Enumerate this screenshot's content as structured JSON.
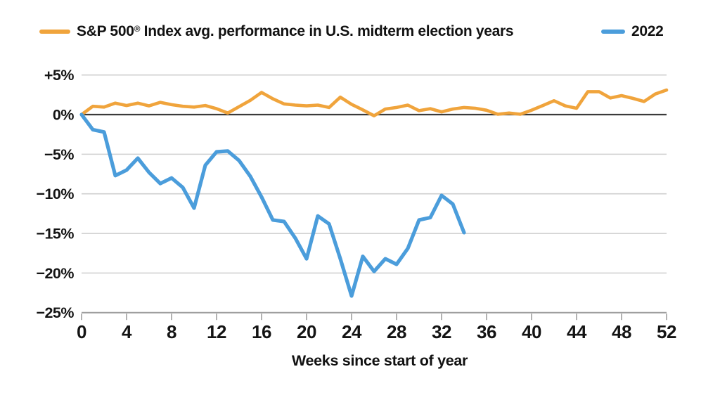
{
  "page": {
    "background": "#ffffff"
  },
  "chart_data": {
    "type": "line",
    "title": "",
    "xlabel": "Weeks since start of year",
    "ylabel": "",
    "xlim": [
      0,
      52
    ],
    "ylim": [
      -25,
      5
    ],
    "grid": true,
    "legend_position": "top",
    "x_ticks": [
      0,
      4,
      8,
      12,
      16,
      20,
      24,
      28,
      32,
      36,
      40,
      44,
      48,
      52
    ],
    "y_ticks": [
      {
        "value": 5,
        "label": "+5%"
      },
      {
        "value": 0,
        "label": "0%"
      },
      {
        "value": -5,
        "label": "−5%"
      },
      {
        "value": -10,
        "label": "−10%"
      },
      {
        "value": -15,
        "label": "−15%"
      },
      {
        "value": -20,
        "label": "−20%"
      },
      {
        "value": -25,
        "label": "−25%"
      }
    ],
    "axis_colors": {
      "grid": "#cfcfcf",
      "zero_line": "#3a3a3a",
      "axis_line": "#9e9e9e",
      "tick": "#9e9e9e",
      "text": "#141414"
    },
    "series": [
      {
        "name": "S&P 500® Index avg. performance in U.S. midterm election years",
        "label_parts": {
          "pre": "S&P 500",
          "reg": "®",
          "post": " Index avg. performance in U.S. midterm election years"
        },
        "color": "#F0A43C",
        "line_width": 4.6,
        "x": [
          0,
          1,
          2,
          3,
          4,
          5,
          6,
          7,
          8,
          9,
          10,
          11,
          12,
          13,
          14,
          15,
          16,
          17,
          18,
          19,
          20,
          21,
          22,
          23,
          24,
          25,
          26,
          27,
          28,
          29,
          30,
          31,
          32,
          33,
          34,
          35,
          36,
          37,
          38,
          39,
          40,
          41,
          42,
          43,
          44,
          45,
          46,
          47,
          48,
          49,
          50,
          51,
          52
        ],
        "values": [
          0.0,
          1.05,
          0.95,
          1.45,
          1.15,
          1.45,
          1.1,
          1.55,
          1.25,
          1.05,
          0.95,
          1.15,
          0.75,
          0.2,
          1.0,
          1.8,
          2.8,
          2.0,
          1.35,
          1.2,
          1.1,
          1.2,
          0.9,
          2.2,
          1.3,
          0.6,
          -0.15,
          0.7,
          0.9,
          1.2,
          0.5,
          0.75,
          0.35,
          0.7,
          0.9,
          0.8,
          0.55,
          0.05,
          0.2,
          0.05,
          0.55,
          1.15,
          1.75,
          1.1,
          0.8,
          2.9,
          2.9,
          2.1,
          2.4,
          2.05,
          1.65,
          2.6,
          3.1
        ]
      },
      {
        "name": "2022",
        "color": "#4B9DDB",
        "line_width": 5.2,
        "x": [
          0,
          1,
          2,
          3,
          4,
          5,
          6,
          7,
          8,
          9,
          10,
          11,
          12,
          13,
          14,
          15,
          16,
          17,
          18,
          19,
          20,
          21,
          22,
          23,
          24,
          25,
          26,
          27,
          28,
          29,
          30,
          31,
          32,
          33,
          34
        ],
        "values": [
          0.0,
          -1.9,
          -2.2,
          -7.7,
          -7.0,
          -5.5,
          -7.3,
          -8.7,
          -8.0,
          -9.2,
          -11.8,
          -6.4,
          -4.7,
          -4.6,
          -5.8,
          -7.8,
          -10.4,
          -13.3,
          -13.5,
          -15.6,
          -18.2,
          -12.8,
          -13.8,
          -18.2,
          -22.9,
          -17.9,
          -19.8,
          -18.2,
          -18.9,
          -16.9,
          -13.3,
          -13.0,
          -10.2,
          -11.3,
          -14.9
        ]
      }
    ]
  }
}
